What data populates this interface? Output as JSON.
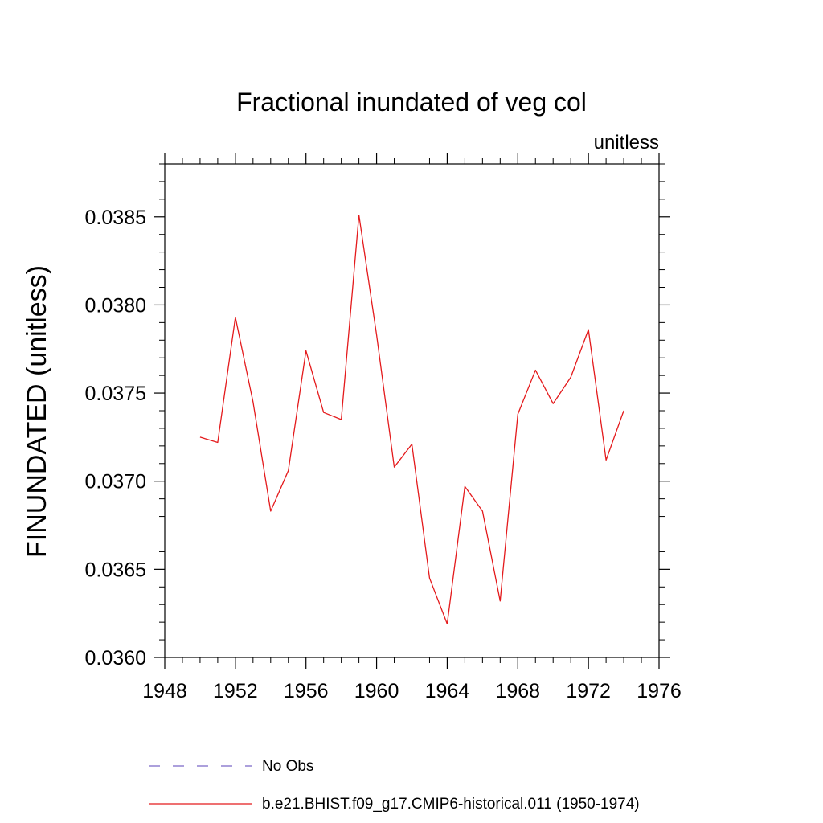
{
  "chart_data": {
    "type": "line",
    "title": "Fractional inundated of veg col",
    "units_label": "unitless",
    "ylabel": "FINUNDATED  (unitless)",
    "xlabel": "",
    "xlim": [
      1948,
      1976
    ],
    "ylim": [
      0.036,
      0.0388
    ],
    "x_ticks": [
      1948,
      1952,
      1956,
      1960,
      1964,
      1968,
      1972,
      1976
    ],
    "x_tick_labels": [
      "1948",
      "1952",
      "1956",
      "1960",
      "1964",
      "1968",
      "1972",
      "1976"
    ],
    "y_ticks": [
      0.036,
      0.0365,
      0.037,
      0.0375,
      0.038,
      0.0385
    ],
    "y_tick_labels": [
      "0.0360",
      "0.0365",
      "0.0370",
      "0.0375",
      "0.0380",
      "0.0385"
    ],
    "grid": false,
    "legend_position": "bottom",
    "series": [
      {
        "name": "b.e21.BHIST.f09_g17.CMIP6-historical.011 (1950-1974)",
        "color": "#e41a1c",
        "style": "solid",
        "x": [
          1950,
          1951,
          1952,
          1953,
          1954,
          1955,
          1956,
          1957,
          1958,
          1959,
          1960,
          1961,
          1962,
          1963,
          1964,
          1965,
          1966,
          1967,
          1968,
          1969,
          1970,
          1971,
          1972,
          1973,
          1974
        ],
        "values": [
          0.03725,
          0.03722,
          0.03793,
          0.03745,
          0.03683,
          0.03706,
          0.03774,
          0.03739,
          0.03735,
          0.03851,
          0.03783,
          0.03708,
          0.03721,
          0.03645,
          0.03619,
          0.03697,
          0.03683,
          0.03632,
          0.03738,
          0.03763,
          0.03744,
          0.03759,
          0.03786,
          0.03712,
          0.0374
        ]
      }
    ],
    "legend": [
      {
        "label": "No Obs",
        "color": "#7b68c8",
        "style": "dashed"
      },
      {
        "label": "b.e21.BHIST.f09_g17.CMIP6-historical.011 (1950-1974)",
        "color": "#e41a1c",
        "style": "solid"
      }
    ]
  }
}
